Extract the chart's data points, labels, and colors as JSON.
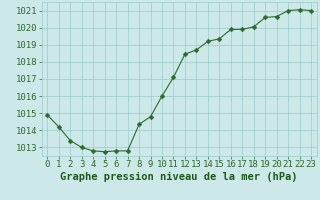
{
  "x": [
    0,
    1,
    2,
    3,
    4,
    5,
    6,
    7,
    8,
    9,
    10,
    11,
    12,
    13,
    14,
    15,
    16,
    17,
    18,
    19,
    20,
    21,
    22,
    23
  ],
  "y": [
    1014.9,
    1014.2,
    1013.4,
    1013.0,
    1012.8,
    1012.75,
    1012.8,
    1012.8,
    1014.35,
    1014.8,
    1016.0,
    1017.1,
    1018.45,
    1018.7,
    1019.2,
    1019.35,
    1019.9,
    1019.9,
    1020.05,
    1020.6,
    1020.65,
    1021.0,
    1021.05,
    1021.0
  ],
  "line_color": "#2d6a2d",
  "marker": "D",
  "marker_size": 2.5,
  "bg_color": "#cce8e8",
  "grid_color": "#99cccc",
  "xlabel": "Graphe pression niveau de la mer (hPa)",
  "xlabel_color": "#1a5c1a",
  "xlabel_fontsize": 7.5,
  "tick_color": "#2d6a2d",
  "tick_fontsize": 6.5,
  "ylim": [
    1012.5,
    1021.5
  ],
  "yticks": [
    1013,
    1014,
    1015,
    1016,
    1017,
    1018,
    1019,
    1020,
    1021
  ],
  "xlim": [
    -0.5,
    23.5
  ],
  "xticks": [
    0,
    1,
    2,
    3,
    4,
    5,
    6,
    7,
    8,
    9,
    10,
    11,
    12,
    13,
    14,
    15,
    16,
    17,
    18,
    19,
    20,
    21,
    22,
    23
  ]
}
